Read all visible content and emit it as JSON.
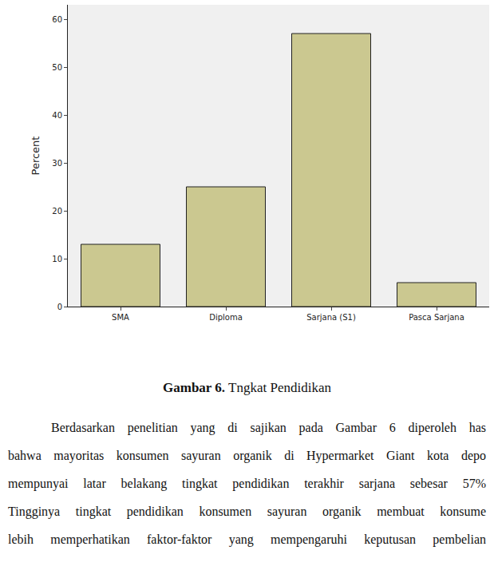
{
  "chart_data": {
    "type": "bar",
    "categories": [
      "SMA",
      "Diploma",
      "Sarjana (S1)",
      "Pasca Sarjana"
    ],
    "values": [
      13,
      25,
      57,
      5
    ],
    "color": "#cbc890",
    "ylabel": "Percent",
    "ylim": [
      0,
      63
    ],
    "yticks": [
      0,
      10,
      20,
      30,
      40,
      50,
      60
    ],
    "grid": false
  },
  "caption": {
    "label": "Gambar 6.",
    "text": "Tngkat Pendidikan"
  },
  "body_lines": [
    "Berdasarkan  penelitian yang  di sajikan pada Gambar 6 diperoleh has",
    "bahwa mayoritas konsumen sayuran organik di Hypermarket Giant kota depo",
    "mempunyai latar belakang tingkat  pendidikan terakhir sarjana  sebesar 57%",
    "Tingginya tingkat pendidikan konsumen sayuran organik membuat konsume",
    "lebih memperhatikan faktor-faktor yang mempengaruhi keputusan pembelian"
  ]
}
